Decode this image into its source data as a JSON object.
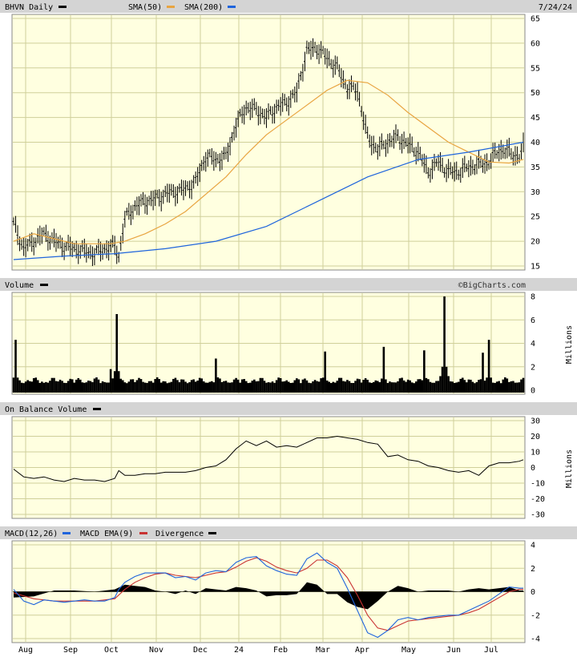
{
  "header": {
    "ticker_label": "BHVN Daily",
    "sma50_label": "SMA(50)",
    "sma200_label": "SMA(200)",
    "date": "7/24/24"
  },
  "panels": {
    "volume": {
      "title": "Volume",
      "watermark": "©BigCharts.com",
      "unit": "Millions"
    },
    "obv": {
      "title": "On Balance Volume",
      "unit": "Millions"
    },
    "macd": {
      "title": "MACD(12,26)",
      "ema_label": "MACD EMA(9)",
      "divergence_label": "Divergence"
    }
  },
  "colors": {
    "panel_bg": "#ffffe0",
    "grid": "#cfcf9a",
    "title_bar": "#d4d4d4",
    "price": "#000000",
    "sma50": "#e8a440",
    "sma200": "#1e64dc",
    "macd": "#1e64dc",
    "macd_ema": "#c83232",
    "divergence": "#000000",
    "volume": "#000000"
  },
  "chart_data": [
    {
      "type": "line",
      "subtype": "ohlc",
      "title": "BHVN Daily",
      "y_axis_side": "right",
      "ylim": [
        15,
        65
      ],
      "y_ticks": [
        15,
        20,
        25,
        30,
        35,
        40,
        45,
        50,
        55,
        60,
        65
      ],
      "x_tick_labels": [
        "Aug",
        "Sep",
        "Oct",
        "Nov",
        "Dec",
        "24",
        "Feb",
        "Mar",
        "Apr",
        "May",
        "Jun",
        "Jul"
      ],
      "grid": true,
      "series": [
        {
          "name": "BHVN Daily",
          "type": "price",
          "x": [
            0,
            5,
            10,
            15,
            20,
            25,
            30,
            35,
            40,
            45,
            50,
            52,
            55,
            60,
            65,
            70,
            75,
            80,
            85,
            90,
            95,
            100,
            105,
            110,
            115,
            120,
            125,
            130,
            135,
            140,
            145,
            150,
            155,
            160,
            165,
            170,
            175,
            180,
            185,
            190,
            195,
            200,
            205,
            210,
            215,
            220,
            225,
            230,
            235,
            240,
            245,
            250,
            252
          ],
          "y": [
            23.5,
            18.5,
            20,
            21.5,
            20,
            19,
            18.5,
            18,
            17.5,
            18.5,
            19,
            17,
            24.5,
            27,
            28,
            28.5,
            29.5,
            30,
            30.5,
            32,
            37,
            36.5,
            37,
            43.5,
            47,
            46.5,
            45,
            47,
            48,
            50,
            58.5,
            59,
            57,
            55,
            51,
            50.5,
            41,
            38.5,
            40,
            41,
            39.5,
            38,
            34,
            36,
            34,
            34,
            35,
            35.5,
            36,
            38.5,
            38,
            37,
            39
          ]
        },
        {
          "name": "SMA(50)",
          "x": [
            0,
            10,
            20,
            30,
            40,
            48,
            55,
            65,
            75,
            85,
            95,
            105,
            115,
            125,
            135,
            145,
            155,
            165,
            175,
            185,
            195,
            205,
            215,
            225,
            235,
            245,
            252
          ],
          "y": [
            20,
            21.5,
            20.5,
            19.5,
            19.5,
            19.5,
            20,
            21.5,
            23.5,
            26,
            29.5,
            33,
            37.5,
            41.5,
            44.5,
            47.5,
            50.5,
            52.5,
            52,
            49.5,
            46,
            43,
            40,
            38,
            36,
            35.8,
            36.5
          ]
        },
        {
          "name": "SMA(200)",
          "x": [
            0,
            25,
            50,
            75,
            100,
            125,
            150,
            175,
            200,
            225,
            252
          ],
          "y": [
            16.3,
            17,
            17.5,
            18.5,
            20,
            23,
            28,
            33,
            36.5,
            38,
            40
          ]
        }
      ]
    },
    {
      "type": "bar",
      "title": "Volume",
      "ylabel": "Millions",
      "ylim": [
        0,
        8
      ],
      "y_ticks": [
        0,
        2,
        4,
        6,
        8
      ],
      "spikes": [
        {
          "x": 1,
          "y": 4.3
        },
        {
          "x": 48,
          "y": 1.8
        },
        {
          "x": 51,
          "y": 6.5
        },
        {
          "x": 100,
          "y": 2.7
        },
        {
          "x": 154,
          "y": 3.3
        },
        {
          "x": 183,
          "y": 3.7
        },
        {
          "x": 203,
          "y": 3.4
        },
        {
          "x": 213,
          "y": 8.0
        },
        {
          "x": 232,
          "y": 3.2
        },
        {
          "x": 235,
          "y": 4.3
        }
      ],
      "baseline_level": 1.0
    },
    {
      "type": "line",
      "title": "On Balance Volume",
      "ylabel": "Millions",
      "ylim": [
        -30,
        30
      ],
      "y_ticks": [
        -30,
        -20,
        -10,
        0,
        10,
        20,
        30
      ],
      "series": [
        {
          "name": "On Balance Volume",
          "x": [
            0,
            5,
            10,
            15,
            20,
            25,
            30,
            35,
            40,
            45,
            50,
            52,
            55,
            60,
            65,
            70,
            75,
            80,
            85,
            90,
            95,
            100,
            105,
            110,
            115,
            120,
            125,
            130,
            135,
            140,
            145,
            150,
            155,
            160,
            165,
            170,
            175,
            180,
            185,
            190,
            195,
            200,
            205,
            210,
            215,
            220,
            225,
            230,
            235,
            240,
            245,
            250,
            252
          ],
          "y": [
            -1,
            -6,
            -7,
            -6,
            -8,
            -9,
            -7,
            -8,
            -8,
            -9,
            -7,
            -2,
            -5,
            -5,
            -4,
            -4,
            -3,
            -3,
            -3,
            -2,
            0,
            1,
            5,
            12,
            17,
            14,
            17,
            13,
            14,
            13,
            16,
            19,
            19,
            20,
            19,
            18,
            16,
            15,
            7,
            8,
            5,
            4,
            1,
            0,
            -2,
            -3,
            -2,
            -5,
            1,
            3,
            3,
            4,
            5
          ]
        }
      ]
    },
    {
      "type": "line",
      "title": "MACD(12,26)",
      "ylim": [
        -4,
        4
      ],
      "y_ticks": [
        -4,
        -2,
        0,
        2,
        4
      ],
      "series": [
        {
          "name": "MACD(12,26)",
          "x": [
            0,
            5,
            10,
            15,
            20,
            25,
            30,
            35,
            40,
            45,
            50,
            52,
            55,
            60,
            65,
            70,
            75,
            80,
            85,
            90,
            95,
            100,
            105,
            110,
            115,
            120,
            125,
            130,
            135,
            140,
            145,
            150,
            155,
            160,
            165,
            170,
            175,
            180,
            185,
            190,
            195,
            200,
            205,
            210,
            215,
            220,
            225,
            230,
            235,
            240,
            245,
            250,
            252
          ],
          "y": [
            0.2,
            -0.8,
            -1.1,
            -0.7,
            -0.8,
            -0.9,
            -0.8,
            -0.7,
            -0.8,
            -0.8,
            -0.5,
            0.2,
            0.8,
            1.3,
            1.6,
            1.6,
            1.6,
            1.2,
            1.3,
            1.0,
            1.6,
            1.8,
            1.7,
            2.5,
            2.9,
            3.0,
            2.2,
            1.8,
            1.5,
            1.4,
            2.8,
            3.3,
            2.5,
            2.0,
            0.3,
            -1.6,
            -3.5,
            -3.9,
            -3.3,
            -2.4,
            -2.2,
            -2.4,
            -2.2,
            -2.1,
            -2.0,
            -2.0,
            -1.6,
            -1.2,
            -0.8,
            -0.2,
            0.4,
            0.3,
            0.3
          ]
        },
        {
          "name": "MACD EMA(9)",
          "x": [
            0,
            10,
            20,
            30,
            40,
            50,
            55,
            60,
            65,
            70,
            75,
            80,
            85,
            90,
            95,
            100,
            105,
            110,
            115,
            120,
            125,
            130,
            135,
            140,
            145,
            150,
            155,
            160,
            165,
            170,
            175,
            180,
            185,
            190,
            195,
            200,
            205,
            210,
            215,
            220,
            225,
            230,
            235,
            240,
            245,
            250,
            252
          ],
          "y": [
            -0.1,
            -0.6,
            -0.8,
            -0.8,
            -0.8,
            -0.6,
            0.2,
            0.8,
            1.2,
            1.5,
            1.6,
            1.4,
            1.3,
            1.2,
            1.4,
            1.6,
            1.7,
            2.1,
            2.6,
            2.9,
            2.6,
            2.1,
            1.8,
            1.6,
            2.0,
            2.7,
            2.7,
            2.2,
            1.2,
            -0.3,
            -2.0,
            -3.1,
            -3.3,
            -2.9,
            -2.5,
            -2.4,
            -2.3,
            -2.2,
            -2.1,
            -2.0,
            -1.8,
            -1.5,
            -1.0,
            -0.5,
            0.0,
            0.2,
            0.2
          ]
        },
        {
          "name": "Divergence",
          "x": [
            0,
            10,
            20,
            30,
            40,
            50,
            55,
            60,
            65,
            70,
            75,
            80,
            85,
            90,
            95,
            100,
            105,
            110,
            115,
            120,
            125,
            130,
            135,
            140,
            145,
            150,
            155,
            160,
            165,
            170,
            175,
            180,
            185,
            190,
            195,
            200,
            205,
            210,
            215,
            220,
            225,
            230,
            235,
            240,
            245,
            250,
            252
          ],
          "y": [
            -0.5,
            -0.4,
            0.1,
            0.1,
            0.0,
            0.2,
            0.6,
            0.5,
            0.4,
            0.1,
            0.0,
            -0.2,
            0.1,
            -0.2,
            0.3,
            0.2,
            0.1,
            0.4,
            0.3,
            0.1,
            -0.4,
            -0.3,
            -0.3,
            -0.2,
            0.8,
            0.6,
            -0.2,
            -0.2,
            -0.9,
            -1.3,
            -1.5,
            -0.8,
            0.0,
            0.5,
            0.3,
            0.0,
            0.1,
            0.1,
            0.1,
            0.0,
            0.2,
            0.3,
            0.2,
            0.3,
            0.4,
            0.1,
            0.1
          ]
        }
      ]
    }
  ]
}
